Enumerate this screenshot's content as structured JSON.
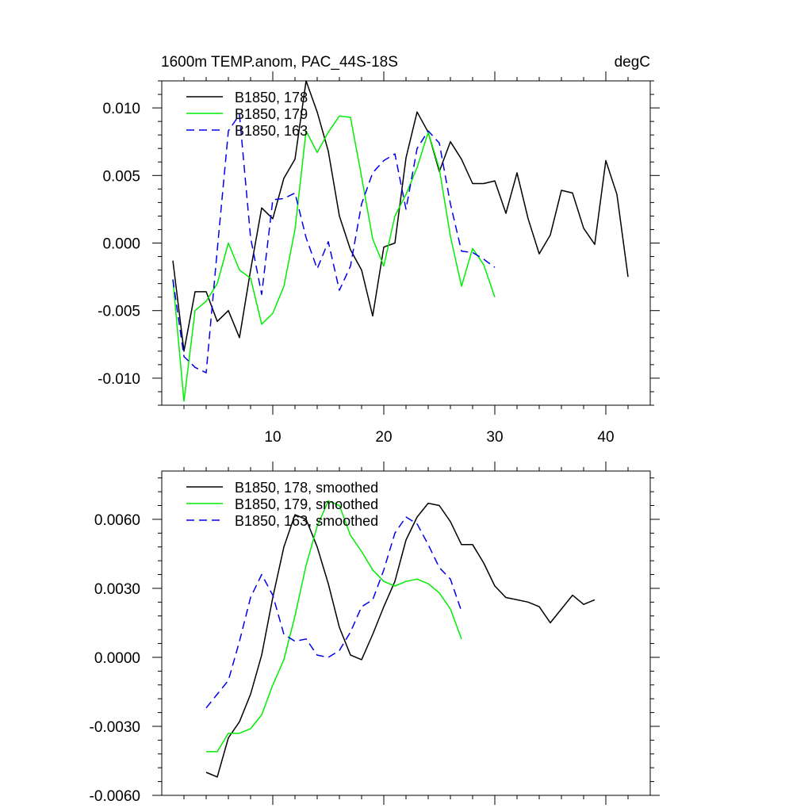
{
  "chart_data": [
    {
      "type": "line",
      "title": "1600m TEMP.anom, PAC_44S-18S",
      "units": "degC",
      "xlim": [
        0,
        44
      ],
      "ylim": [
        -0.012,
        0.012
      ],
      "x_ticks": [
        10,
        20,
        30,
        40
      ],
      "x_tick_labels": [
        "10",
        "20",
        "30",
        "40"
      ],
      "y_ticks": [
        -0.01,
        -0.005,
        0.0,
        0.005,
        0.01
      ],
      "y_tick_labels": [
        "-0.010",
        "-0.005",
        "0.000",
        "0.005",
        "0.010"
      ],
      "legend": [
        "B1850, 178",
        "B1850, 179",
        "B1850, 163"
      ],
      "series": [
        {
          "name": "B1850, 178",
          "color": "#000000",
          "dash": "solid",
          "x": [
            1,
            2,
            3,
            4,
            5,
            6,
            7,
            8,
            9,
            10,
            11,
            12,
            13,
            14,
            15,
            16,
            17,
            18,
            19,
            20,
            21,
            22,
            23,
            24,
            25,
            26,
            27,
            28,
            29,
            30,
            31,
            32,
            33,
            34,
            35,
            36,
            37,
            38,
            39,
            40,
            41,
            42
          ],
          "y": [
            -0.0013,
            -0.008,
            -0.0036,
            -0.0036,
            -0.0058,
            -0.005,
            -0.007,
            -0.002,
            0.0026,
            0.0018,
            0.0048,
            0.0062,
            0.012,
            0.0097,
            0.0068,
            0.002,
            -0.0005,
            -0.002,
            -0.0054,
            -0.0003,
            0,
            0.0063,
            0.0097,
            0.0082,
            0.0053,
            0.0075,
            0.0062,
            0.0044,
            0.0044,
            0.0046,
            0.0022,
            0.0052,
            0.0018,
            -0.0008,
            0.0006,
            0.0039,
            0.0037,
            0.0011,
            -0.0001,
            0.0061,
            0.0036,
            -0.0025
          ]
        },
        {
          "name": "B1850, 179",
          "color": "#00ee00",
          "dash": "solid",
          "x": [
            1,
            2,
            3,
            4,
            5,
            6,
            7,
            8,
            9,
            10,
            11,
            12,
            13,
            14,
            15,
            16,
            17,
            18,
            19,
            20,
            21,
            22,
            23,
            24,
            25,
            26,
            27,
            28,
            29,
            30
          ],
          "y": [
            -0.0027,
            -0.0117,
            -0.005,
            -0.0043,
            -0.003,
            0,
            -0.002,
            -0.0026,
            -0.006,
            -0.0052,
            -0.0032,
            0.001,
            0.0083,
            0.0067,
            0.0082,
            0.0094,
            0.0093,
            0.0049,
            0.0003,
            -0.0017,
            0.002,
            0.0036,
            0.0056,
            0.0082,
            0.0055,
            0.0005,
            -0.0032,
            -0.0004,
            -0.0016,
            -0.004
          ]
        },
        {
          "name": "B1850, 163",
          "color": "#0000ee",
          "dash": "dashed",
          "x": [
            1,
            2,
            3,
            4,
            5,
            6,
            7,
            8,
            9,
            10,
            11,
            12,
            13,
            14,
            15,
            16,
            17,
            18,
            19,
            20,
            21,
            22,
            23,
            24,
            25,
            26,
            27,
            28,
            29,
            30
          ],
          "y": [
            -0.0027,
            -0.0084,
            -0.0092,
            -0.0096,
            -0.0005,
            0.0083,
            0.0095,
            0.0004,
            -0.0038,
            0.0032,
            0.0033,
            0.0037,
            0.0004,
            -0.0019,
            0.0001,
            -0.0035,
            -0.0017,
            0.0029,
            0.0052,
            0.0061,
            0.0066,
            0.0025,
            0.007,
            0.0083,
            0.0074,
            0.0029,
            -0.0006,
            -0.0007,
            -0.0012,
            -0.0018
          ]
        }
      ]
    },
    {
      "type": "line",
      "title": "",
      "xlim": [
        0,
        44
      ],
      "ylim": [
        -0.006,
        0.0081
      ],
      "x_ticks": [
        10,
        20,
        30,
        40
      ],
      "x_tick_labels": [],
      "y_ticks": [
        -0.006,
        -0.003,
        0.0,
        0.003,
        0.006
      ],
      "y_tick_labels": [
        "-0.0060",
        "-0.0030",
        "0.0000",
        "0.0030",
        "0.0060"
      ],
      "legend": [
        "B1850, 178, smoothed",
        "B1850, 179, smoothed",
        "B1850, 163, smoothed"
      ],
      "series": [
        {
          "name": "B1850, 178, smoothed",
          "color": "#000000",
          "dash": "solid",
          "x": [
            4,
            5,
            6,
            7,
            8,
            9,
            10,
            11,
            12,
            13,
            14,
            15,
            16,
            17,
            18,
            19,
            20,
            21,
            22,
            23,
            24,
            25,
            26,
            27,
            28,
            29,
            30,
            31,
            32,
            33,
            34,
            35,
            36,
            37,
            38,
            39
          ],
          "y": [
            -0.005,
            -0.0052,
            -0.0035,
            -0.0028,
            -0.0016,
            0.0001,
            0.0026,
            0.0048,
            0.0062,
            0.006,
            0.0048,
            0.0032,
            0.0013,
            0.0001,
            -0.0001,
            0.001,
            0.0022,
            0.0033,
            0.0051,
            0.0061,
            0.0067,
            0.0066,
            0.0059,
            0.0049,
            0.0049,
            0.0041,
            0.0031,
            0.0026,
            0.0025,
            0.0024,
            0.0022,
            0.0015,
            0.0021,
            0.0027,
            0.0023,
            0.0025
          ]
        },
        {
          "name": "B1850, 179, smoothed",
          "color": "#00ee00",
          "dash": "solid",
          "x": [
            4,
            5,
            6,
            7,
            8,
            9,
            10,
            11,
            12,
            13,
            14,
            15,
            16,
            17,
            18,
            19,
            20,
            21,
            22,
            23,
            24,
            25,
            26,
            27
          ],
          "y": [
            -0.0041,
            -0.0041,
            -0.0033,
            -0.0033,
            -0.0031,
            -0.0025,
            -0.0012,
            -0.0001,
            0.0018,
            0.004,
            0.0057,
            0.0068,
            0.0066,
            0.0053,
            0.0046,
            0.0038,
            0.0033,
            0.0031,
            0.0033,
            0.0034,
            0.0032,
            0.0028,
            0.0021,
            0.0008
          ]
        },
        {
          "name": "B1850, 163, smoothed",
          "color": "#0000ee",
          "dash": "dashed",
          "x": [
            4,
            5,
            6,
            7,
            8,
            9,
            10,
            11,
            12,
            13,
            14,
            15,
            16,
            17,
            18,
            19,
            20,
            21,
            22,
            23,
            24,
            25,
            26,
            27
          ],
          "y": [
            -0.0022,
            -0.0016,
            -0.001,
            0.0007,
            0.0026,
            0.0036,
            0.0027,
            0.001,
            0.0007,
            0.0008,
            0.0001,
            0,
            0.0003,
            0.0011,
            0.0022,
            0.0025,
            0.0038,
            0.0054,
            0.0061,
            0.0058,
            0.0049,
            0.0039,
            0.0034,
            0.002
          ]
        }
      ]
    }
  ]
}
